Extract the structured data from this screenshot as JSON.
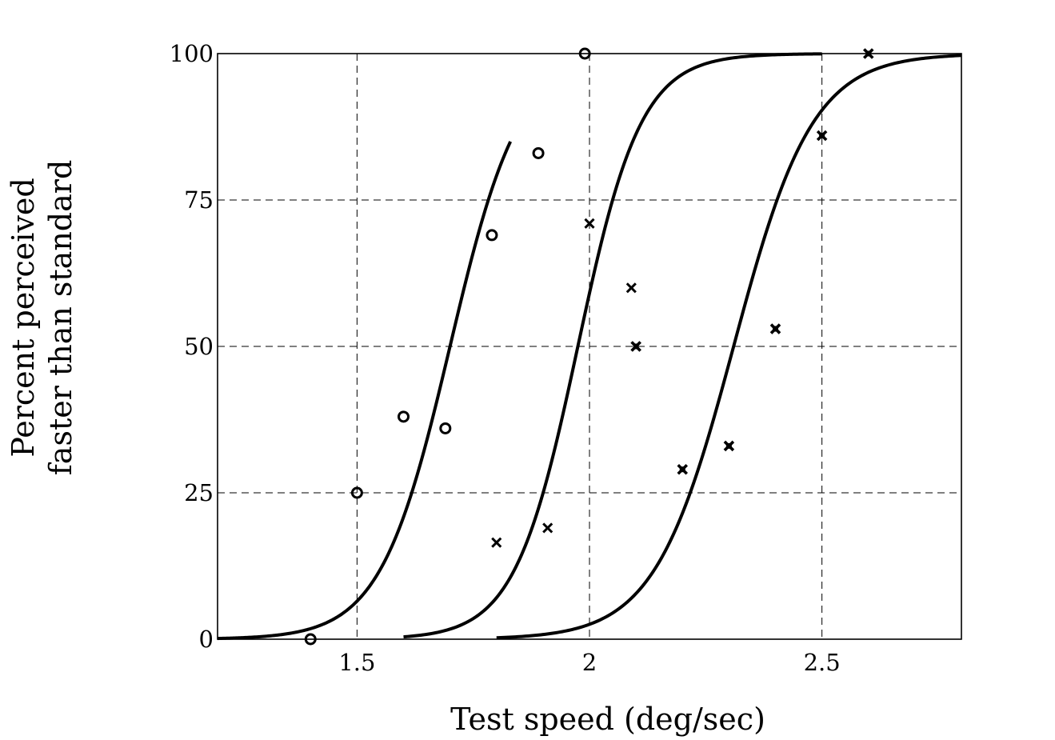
{
  "chart_data": {
    "type": "scatter",
    "title": "",
    "xlabel": "Test speed (deg/sec)",
    "ylabel": [
      "Percent perceived",
      "faster than standard"
    ],
    "xlim": [
      1.2,
      2.8
    ],
    "ylim": [
      0,
      100
    ],
    "x_ticks": [
      1.5,
      2,
      2.5
    ],
    "x_tick_labels": [
      "1.5",
      "2",
      "2.5"
    ],
    "y_ticks": [
      0,
      25,
      50,
      75,
      100
    ],
    "y_tick_labels": [
      "0",
      "25",
      "50",
      "75",
      "100"
    ],
    "grid": true,
    "grid_style": "dashed",
    "series": [
      {
        "marker": "circle",
        "points": [
          [
            1.4,
            0
          ],
          [
            1.5,
            25
          ],
          [
            1.6,
            38
          ],
          [
            1.69,
            36
          ],
          [
            1.79,
            69
          ],
          [
            1.89,
            83
          ],
          [
            1.99,
            100
          ]
        ]
      },
      {
        "marker": "x",
        "points": [
          [
            1.8,
            16.5
          ],
          [
            1.91,
            19
          ],
          [
            2.0,
            71
          ],
          [
            2.09,
            60
          ],
          [
            2.1,
            50
          ]
        ]
      },
      {
        "marker": "x-bold",
        "points": [
          [
            2.1,
            50
          ],
          [
            2.2,
            29
          ],
          [
            2.3,
            33
          ],
          [
            2.4,
            53
          ],
          [
            2.5,
            86
          ],
          [
            2.6,
            100
          ]
        ]
      }
    ],
    "curves": [
      {
        "x_range": [
          1.2,
          1.83
        ],
        "midpoint": 1.7,
        "scale": 0.075
      },
      {
        "x_range": [
          1.6,
          2.5
        ],
        "midpoint": 1.975,
        "scale": 0.068
      },
      {
        "x_range": [
          1.8,
          2.8
        ],
        "midpoint": 2.31,
        "scale": 0.085
      }
    ]
  }
}
